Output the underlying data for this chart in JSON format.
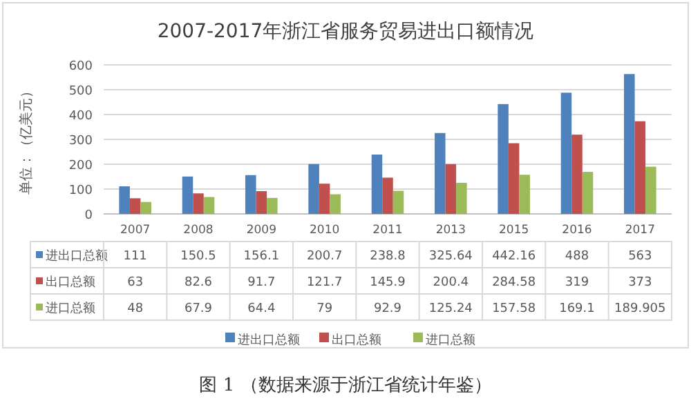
{
  "chart_data": {
    "type": "bar",
    "title": "2007-2017年浙江省服务贸易进出口额情况",
    "ylabel": "单位：（亿美元）",
    "categories": [
      "2007",
      "2008",
      "2009",
      "2010",
      "2011",
      "2013",
      "2015",
      "2016",
      "2017"
    ],
    "series": [
      {
        "name": "进出口总额",
        "color": "#4f81bd",
        "values": [
          111,
          150.5,
          156.1,
          200.7,
          238.8,
          325.64,
          442.16,
          488,
          563
        ]
      },
      {
        "name": "出口总额",
        "color": "#c0504d",
        "values": [
          63,
          82.6,
          91.7,
          121.7,
          145.9,
          200.4,
          284.58,
          319,
          373
        ]
      },
      {
        "name": "进口总额",
        "color": "#9bbb59",
        "values": [
          48,
          67.9,
          64.4,
          79,
          92.9,
          125.24,
          157.58,
          169.1,
          189.905
        ]
      }
    ],
    "ylim": [
      0,
      600
    ],
    "yticks": [
      0,
      100,
      200,
      300,
      400,
      500,
      600
    ],
    "grid": "y",
    "legend": "bottom",
    "data_labels": true,
    "annotations": [
      "图 1 （数据来源于浙江省统计年鉴）"
    ]
  }
}
